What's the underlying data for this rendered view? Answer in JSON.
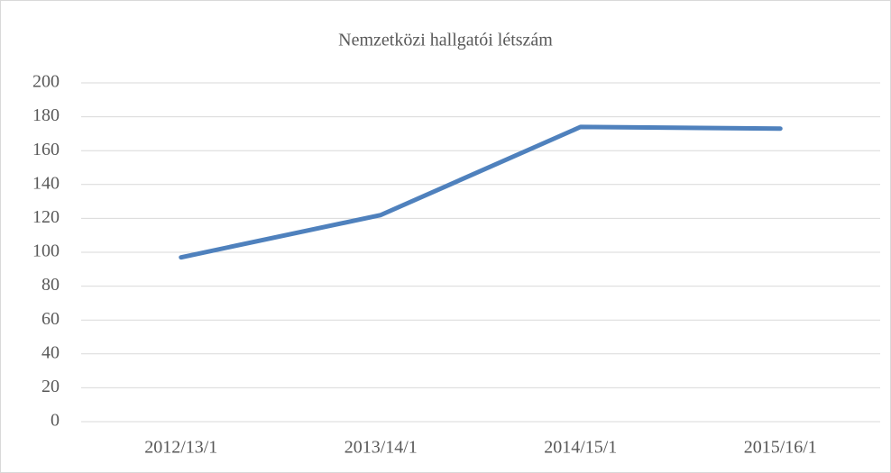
{
  "chart_data": {
    "type": "line",
    "title": "Nemzetközi hallgatói létszám",
    "categories": [
      "2012/13/1",
      "2013/14/1",
      "2014/15/1",
      "2015/16/1"
    ],
    "values": [
      97,
      122,
      174,
      173
    ],
    "color": "#4f81bd",
    "ylim": [
      0,
      200
    ],
    "yticks": [
      0,
      20,
      40,
      60,
      80,
      100,
      120,
      140,
      160,
      180,
      200
    ],
    "grid": true
  }
}
